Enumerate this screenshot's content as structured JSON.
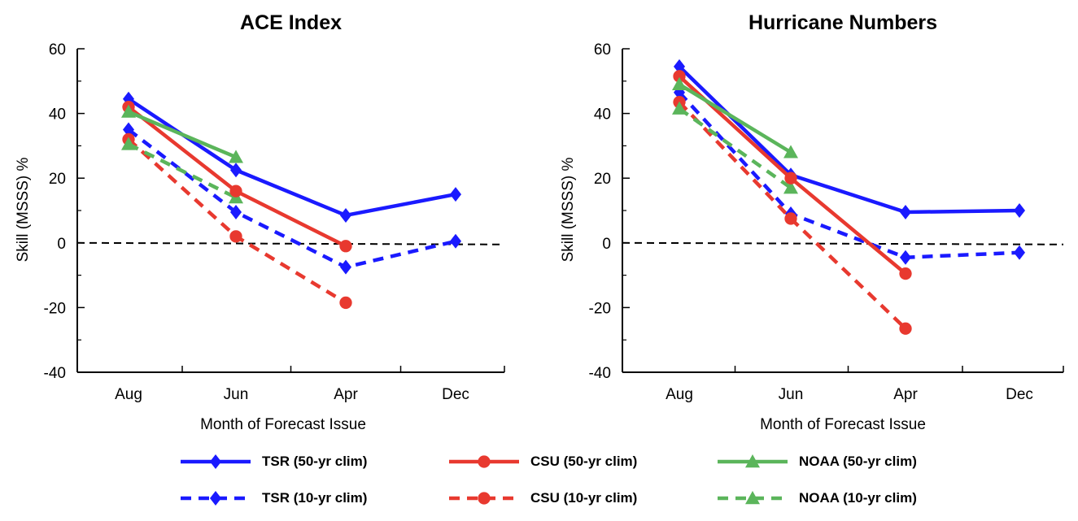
{
  "chart_data": [
    {
      "type": "line",
      "title": "ACE Index",
      "xlabel": "Month of Forecast Issue",
      "ylabel": "Skill (MSSS) %",
      "categories": [
        "Aug",
        "Jun",
        "Apr",
        "Dec"
      ],
      "ylim": [
        -40,
        60
      ],
      "yticks": [
        -40,
        -20,
        0,
        20,
        40,
        60
      ],
      "reference_line": {
        "y": 0,
        "style": "dashed",
        "color": "#000000"
      },
      "series": [
        {
          "name": "TSR (50-yr clim)",
          "values": [
            44.5,
            22.5,
            8.5,
            15.0
          ]
        },
        {
          "name": "CSU (50-yr clim)",
          "values": [
            42.0,
            16.0,
            -1.0,
            null
          ]
        },
        {
          "name": "NOAA (50-yr clim)",
          "values": [
            40.5,
            26.5,
            null,
            null
          ]
        },
        {
          "name": "TSR (10-yr clim)",
          "values": [
            35.0,
            9.5,
            -7.5,
            0.5
          ]
        },
        {
          "name": "CSU (10-yr clim)",
          "values": [
            32.0,
            2.0,
            -18.5,
            null
          ]
        },
        {
          "name": "NOAA (10-yr clim)",
          "values": [
            30.5,
            14.0,
            null,
            null
          ]
        }
      ]
    },
    {
      "type": "line",
      "title": "Hurricane Numbers",
      "xlabel": "Month of Forecast Issue",
      "ylabel": "Skill (MSSS) %",
      "categories": [
        "Aug",
        "Jun",
        "Apr",
        "Dec"
      ],
      "ylim": [
        -40,
        60
      ],
      "yticks": [
        -40,
        -20,
        0,
        20,
        40,
        60
      ],
      "reference_line": {
        "y": 0,
        "style": "dashed",
        "color": "#000000"
      },
      "series": [
        {
          "name": "TSR (50-yr clim)",
          "values": [
            54.5,
            21.0,
            9.5,
            10.0
          ]
        },
        {
          "name": "CSU (50-yr clim)",
          "values": [
            51.5,
            20.0,
            -9.5,
            null
          ]
        },
        {
          "name": "NOAA (50-yr clim)",
          "values": [
            49.0,
            28.0,
            null,
            null
          ]
        },
        {
          "name": "TSR (10-yr clim)",
          "values": [
            46.5,
            9.0,
            -4.5,
            -3.0
          ]
        },
        {
          "name": "CSU (10-yr clim)",
          "values": [
            43.5,
            7.5,
            -26.5,
            null
          ]
        },
        {
          "name": "NOAA (10-yr clim)",
          "values": [
            41.5,
            17.0,
            null,
            null
          ]
        }
      ]
    }
  ],
  "legend": [
    {
      "name": "TSR (50-yr clim)",
      "color": "#1a1aff",
      "dash": false,
      "marker": "diamond"
    },
    {
      "name": "CSU (50-yr clim)",
      "color": "#e8392f",
      "dash": false,
      "marker": "circle"
    },
    {
      "name": "NOAA (50-yr clim)",
      "color": "#5bb55b",
      "dash": false,
      "marker": "triangle"
    },
    {
      "name": "TSR (10-yr clim)",
      "color": "#1a1aff",
      "dash": true,
      "marker": "diamond"
    },
    {
      "name": "CSU (10-yr clim)",
      "color": "#e8392f",
      "dash": true,
      "marker": "circle"
    },
    {
      "name": "NOAA (10-yr clim)",
      "color": "#5bb55b",
      "dash": true,
      "marker": "triangle"
    }
  ],
  "legend_placement": "bottom-center, 3 columns x 2 rows"
}
